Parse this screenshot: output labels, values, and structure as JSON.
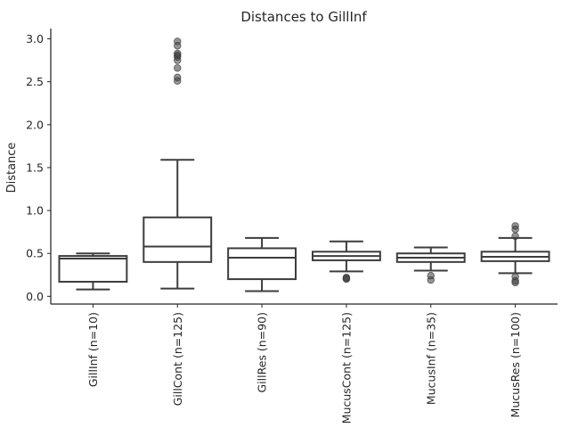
{
  "chart_data": {
    "type": "box",
    "title": "Distances to GillInf",
    "xlabel": "",
    "ylabel": "Distance",
    "ylim": [
      -0.09,
      3.12
    ],
    "yticks": [
      "0.0",
      "0.5",
      "1.0",
      "1.5",
      "2.0",
      "2.5",
      "3.0"
    ],
    "ytick_values": [
      0.0,
      0.5,
      1.0,
      1.5,
      2.0,
      2.5,
      3.0
    ],
    "grid": false,
    "categories": [
      "GillInf (n=10)",
      "GillCont (n=125)",
      "GillRes (n=90)",
      "MucusCont (n=125)",
      "MucusInf (n=35)",
      "MucusRes (n=100)"
    ],
    "boxes": [
      {
        "category": "GillInf (n=10)",
        "whisker_low": 0.08,
        "q1": 0.17,
        "median": 0.44,
        "q3": 0.47,
        "whisker_high": 0.5,
        "outliers": []
      },
      {
        "category": "GillCont (n=125)",
        "whisker_low": 0.09,
        "q1": 0.4,
        "median": 0.58,
        "q3": 0.92,
        "whisker_high": 1.59,
        "outliers": [
          2.97,
          2.92,
          2.83,
          2.81,
          2.79,
          2.75,
          2.66,
          2.55,
          2.51
        ]
      },
      {
        "category": "GillRes (n=90)",
        "whisker_low": 0.06,
        "q1": 0.2,
        "median": 0.45,
        "q3": 0.56,
        "whisker_high": 0.68,
        "outliers": []
      },
      {
        "category": "MucusCont (n=125)",
        "whisker_low": 0.29,
        "q1": 0.42,
        "median": 0.47,
        "q3": 0.52,
        "whisker_high": 0.64,
        "outliers": [
          0.22,
          0.21,
          0.2
        ]
      },
      {
        "category": "MucusInf (n=35)",
        "whisker_low": 0.3,
        "q1": 0.4,
        "median": 0.45,
        "q3": 0.5,
        "whisker_high": 0.57,
        "outliers": [
          0.24,
          0.19
        ]
      },
      {
        "category": "MucusRes (n=100)",
        "whisker_low": 0.27,
        "q1": 0.41,
        "median": 0.46,
        "q3": 0.52,
        "whisker_high": 0.68,
        "outliers": [
          0.82,
          0.78,
          0.7,
          0.23,
          0.18,
          0.16
        ]
      }
    ]
  }
}
